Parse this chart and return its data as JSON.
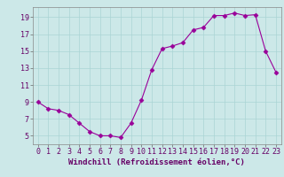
{
  "x": [
    0,
    1,
    2,
    3,
    4,
    5,
    6,
    7,
    8,
    9,
    10,
    11,
    12,
    13,
    14,
    15,
    16,
    17,
    18,
    19,
    20,
    21,
    22,
    23
  ],
  "y": [
    9,
    8.2,
    8.0,
    7.5,
    6.5,
    5.5,
    5.0,
    5.0,
    4.8,
    6.5,
    9.2,
    12.8,
    15.3,
    15.6,
    16.0,
    17.5,
    17.8,
    19.2,
    19.2,
    19.5,
    19.2,
    19.3,
    15.0,
    12.5
  ],
  "line_color": "#990099",
  "marker": "D",
  "markersize": 2.5,
  "linewidth": 0.8,
  "bg_color": "#cce8e8",
  "grid_color": "#aad4d4",
  "xlabel": "Windchill (Refroidissement éolien,°C)",
  "xlabel_fontsize": 6.5,
  "tick_fontsize": 6,
  "xlim": [
    -0.5,
    23.5
  ],
  "ylim": [
    4.0,
    20.2
  ],
  "yticks": [
    5,
    7,
    9,
    11,
    13,
    15,
    17,
    19
  ],
  "xticks": [
    0,
    1,
    2,
    3,
    4,
    5,
    6,
    7,
    8,
    9,
    10,
    11,
    12,
    13,
    14,
    15,
    16,
    17,
    18,
    19,
    20,
    21,
    22,
    23
  ]
}
